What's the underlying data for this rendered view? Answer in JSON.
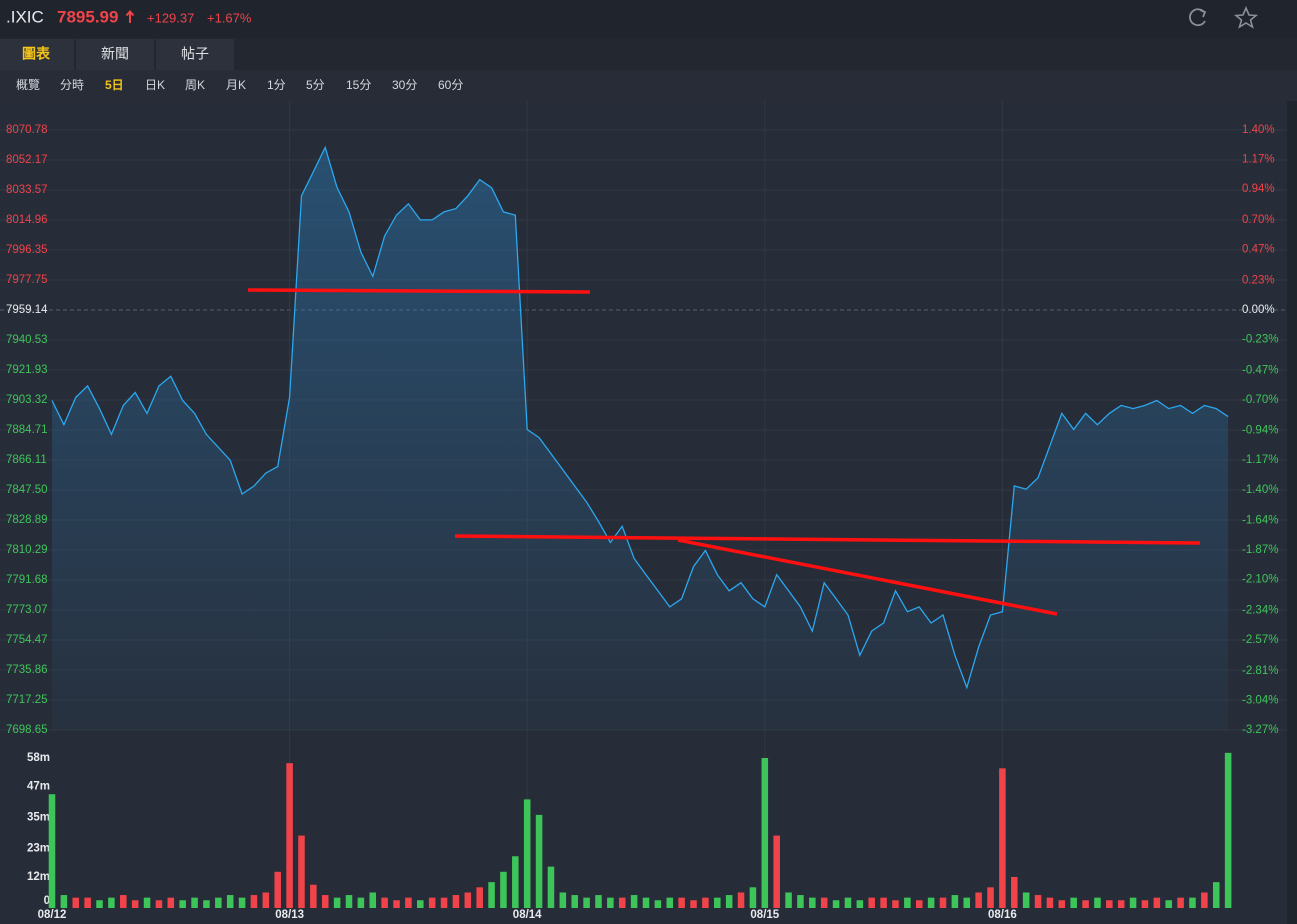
{
  "header": {
    "symbol": ".IXIC",
    "price": "7895.99",
    "change": "+129.37",
    "change_pct": "+1.67%"
  },
  "tabs": [
    "圖表",
    "新聞",
    "帖子"
  ],
  "periods": [
    "概覽",
    "分時",
    "5日",
    "日K",
    "周K",
    "月K",
    "1分",
    "5分",
    "15分",
    "30分",
    "60分"
  ],
  "chart_data": {
    "type": "line",
    "x": [
      0,
      1,
      2,
      3,
      4,
      5,
      6,
      7,
      8,
      9,
      10,
      11,
      12,
      13,
      14,
      15,
      16,
      17,
      18,
      19,
      20,
      21,
      22,
      23,
      24,
      25,
      26,
      27,
      28,
      29,
      30,
      31,
      32,
      33,
      34,
      35,
      36,
      37,
      38,
      39,
      40,
      41,
      42,
      43,
      44,
      45,
      46,
      47,
      48,
      49,
      50,
      51,
      52,
      53,
      54,
      55,
      56,
      57,
      58,
      59,
      60,
      61,
      62,
      63,
      64,
      65,
      66,
      67,
      68,
      69,
      70,
      71,
      72,
      73,
      74,
      75,
      76,
      77,
      78,
      79,
      80,
      81,
      82,
      83,
      84,
      85,
      86,
      87,
      88,
      89,
      90,
      91,
      92,
      93,
      94,
      95,
      96,
      97,
      98,
      99
    ],
    "series": [
      {
        "color": "#2aa8f0",
        "values": [
          7903,
          7888,
          7905,
          7912,
          7898,
          7882,
          7900,
          7908,
          7895,
          7912,
          7918,
          7903,
          7895,
          7882,
          7874,
          7866,
          7845,
          7850,
          7858,
          7862,
          7905,
          8030,
          8045,
          8060,
          8035,
          8020,
          7995,
          7980,
          8005,
          8018,
          8025,
          8015,
          8015,
          8020,
          8022,
          8030,
          8040,
          8035,
          8020,
          8018,
          7885,
          7880,
          7870,
          7860,
          7850,
          7840,
          7828,
          7815,
          7825,
          7805,
          7795,
          7785,
          7775,
          7780,
          7800,
          7810,
          7795,
          7785,
          7790,
          7780,
          7775,
          7795,
          7785,
          7775,
          7760,
          7790,
          7780,
          7770,
          7745,
          7760,
          7765,
          7785,
          7772,
          7775,
          7765,
          7770,
          7745,
          7725,
          7750,
          7770,
          7772,
          7850,
          7848,
          7855,
          7875,
          7895,
          7885,
          7895,
          7888,
          7895,
          7900,
          7898,
          7900,
          7903,
          7898,
          7900,
          7895,
          7900,
          7898,
          7893
        ]
      }
    ],
    "xlim": [
      0,
      100
    ],
    "xticks": [
      {
        "value": 0,
        "label": "08/12"
      },
      {
        "value": 20,
        "label": "08/13"
      },
      {
        "value": 40,
        "label": "08/14"
      },
      {
        "value": 60,
        "label": "08/15"
      },
      {
        "value": 80,
        "label": "08/16"
      }
    ],
    "ylim": [
      7698.65,
      8070.78
    ],
    "yticks": [
      8070.78,
      8052.17,
      8033.57,
      8014.96,
      7996.35,
      7977.75,
      7959.14,
      7940.53,
      7921.93,
      7903.32,
      7884.71,
      7866.11,
      {
        "value": 7847.5,
        "label": "7847.50"
      },
      7828.89,
      7810.29,
      7791.68,
      7773.07,
      7754.47,
      7735.86,
      7717.25,
      7698.65
    ],
    "y2lim": [
      -3.27,
      1.4
    ],
    "y2ticks": [
      {
        "value": 1.4,
        "label": "1.40%"
      },
      {
        "value": 1.17,
        "label": "1.17%"
      },
      {
        "value": 0.94,
        "label": "0.94%"
      },
      {
        "value": 0.7,
        "label": "0.70%"
      },
      {
        "value": 0.47,
        "label": "0.47%"
      },
      {
        "value": 0.23,
        "label": "0.23%"
      },
      {
        "value": 0,
        "label": "0.00%"
      },
      {
        "value": -0.23,
        "label": "-0.23%"
      },
      {
        "value": -0.47,
        "label": "-0.47%"
      },
      {
        "value": -0.7,
        "label": "-0.70%"
      },
      {
        "value": -0.94,
        "label": "-0.94%"
      },
      {
        "value": -1.17,
        "label": "-1.17%"
      },
      {
        "value": -1.4,
        "label": "-1.40%"
      },
      {
        "value": -1.64,
        "label": "-1.64%"
      },
      {
        "value": -1.87,
        "label": "-1.87%"
      },
      {
        "value": -2.1,
        "label": "-2.10%"
      },
      {
        "value": -2.34,
        "label": "-2.34%"
      },
      {
        "value": -2.57,
        "label": "-2.57%"
      },
      {
        "value": -2.81,
        "label": "-2.81%"
      },
      {
        "value": -3.04,
        "label": "-3.04%"
      },
      {
        "value": -3.27,
        "label": "-3.27%"
      }
    ],
    "up_color": "#f0434a",
    "down_color": "#3ec55a",
    "grid": true,
    "volume": {
      "values": [
        44,
        5,
        4,
        4,
        3,
        4,
        5,
        3,
        4,
        3,
        4,
        3,
        4,
        3,
        4,
        5,
        4,
        5,
        6,
        14,
        56,
        28,
        9,
        5,
        4,
        5,
        4,
        6,
        4,
        3,
        4,
        3,
        4,
        4,
        5,
        6,
        8,
        10,
        14,
        20,
        42,
        36,
        16,
        6,
        5,
        4,
        5,
        4,
        4,
        5,
        4,
        3,
        4,
        4,
        3,
        4,
        4,
        5,
        6,
        8,
        58,
        28,
        6,
        5,
        4,
        4,
        3,
        4,
        3,
        4,
        4,
        3,
        4,
        3,
        4,
        4,
        5,
        4,
        6,
        8,
        54,
        12,
        6,
        5,
        4,
        3,
        4,
        3,
        4,
        3,
        3,
        4,
        3,
        4,
        3,
        4,
        4,
        6,
        10,
        60
      ],
      "ylim": [
        0,
        58
      ],
      "yticks": [
        {
          "value": 58,
          "label": "58m"
        },
        {
          "value": 47,
          "label": "47m"
        },
        {
          "value": 35,
          "label": "35m"
        },
        {
          "value": 23,
          "label": "23m"
        },
        {
          "value": 12,
          "label": "12m"
        },
        0
      ]
    }
  }
}
